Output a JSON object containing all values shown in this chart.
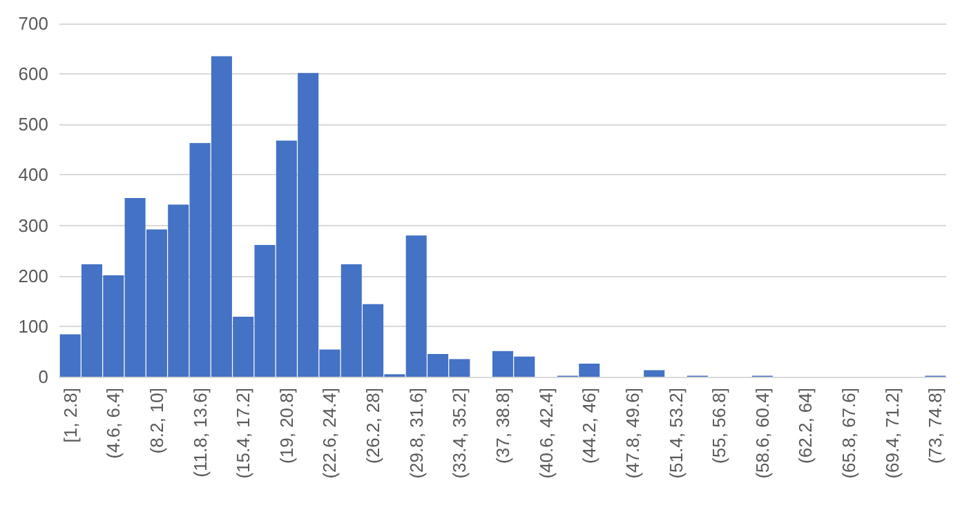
{
  "chart_data": {
    "type": "bar",
    "categories": [
      "[1, 2.8]",
      null,
      "(4.6, 6.4]",
      null,
      "(8.2, 10]",
      null,
      "(11.8, 13.6]",
      null,
      "(15.4, 17.2]",
      null,
      "(19, 20.8]",
      null,
      "(22.6, 24.4]",
      null,
      "(26.2, 28]",
      null,
      "(29.8, 31.6]",
      null,
      "(33.4, 35.2]",
      null,
      "(37, 38.8]",
      null,
      "(40.6, 42.4]",
      null,
      "(44.2, 46]",
      null,
      "(47.8, 49.6]",
      null,
      "(51.4, 53.2]",
      null,
      "(55, 56.8]",
      null,
      "(58.6, 60.4]",
      null,
      "(62.2, 64]",
      null,
      "(65.8, 67.6]",
      null,
      "(69.4, 71.2]",
      null,
      "(73, 74.8]"
    ],
    "values": [
      84,
      223,
      201,
      354,
      292,
      341,
      463,
      635,
      119,
      261,
      468,
      602,
      54,
      223,
      144,
      5,
      280,
      45,
      35,
      0,
      51,
      40,
      0,
      2,
      26,
      0,
      0,
      13,
      0,
      2,
      0,
      0,
      2,
      0,
      0,
      0,
      0,
      0,
      0,
      0,
      2
    ],
    "color": "#4472c4",
    "ylim": [
      0,
      700
    ],
    "yticks": [
      0,
      100,
      200,
      300,
      400,
      500,
      600,
      700
    ],
    "grid": "y"
  }
}
